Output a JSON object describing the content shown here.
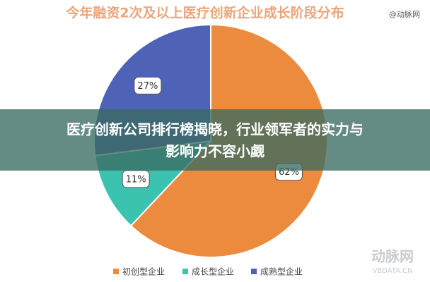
{
  "chart_data": {
    "type": "pie",
    "title": "今年融资2次及以上医疗创新企业成长阶段分布",
    "categories": [
      "初创型企业",
      "成长型企业",
      "成熟型企业"
    ],
    "values": [
      62,
      11,
      27
    ],
    "value_labels": [
      "62%",
      "11%",
      "27%"
    ],
    "colors": [
      "#ec8a3e",
      "#3cc3b0",
      "#4e62b8"
    ],
    "direction": "clockwise",
    "legend": "bottom"
  },
  "watermark": "@动脉网",
  "footer_logo": {
    "name": "动脉网",
    "url": "VBDATA.CN"
  },
  "banner": {
    "lines": [
      "医疗创新公司排行榜揭晓，行业领军者的实力与",
      "影响力不容小觑"
    ]
  }
}
